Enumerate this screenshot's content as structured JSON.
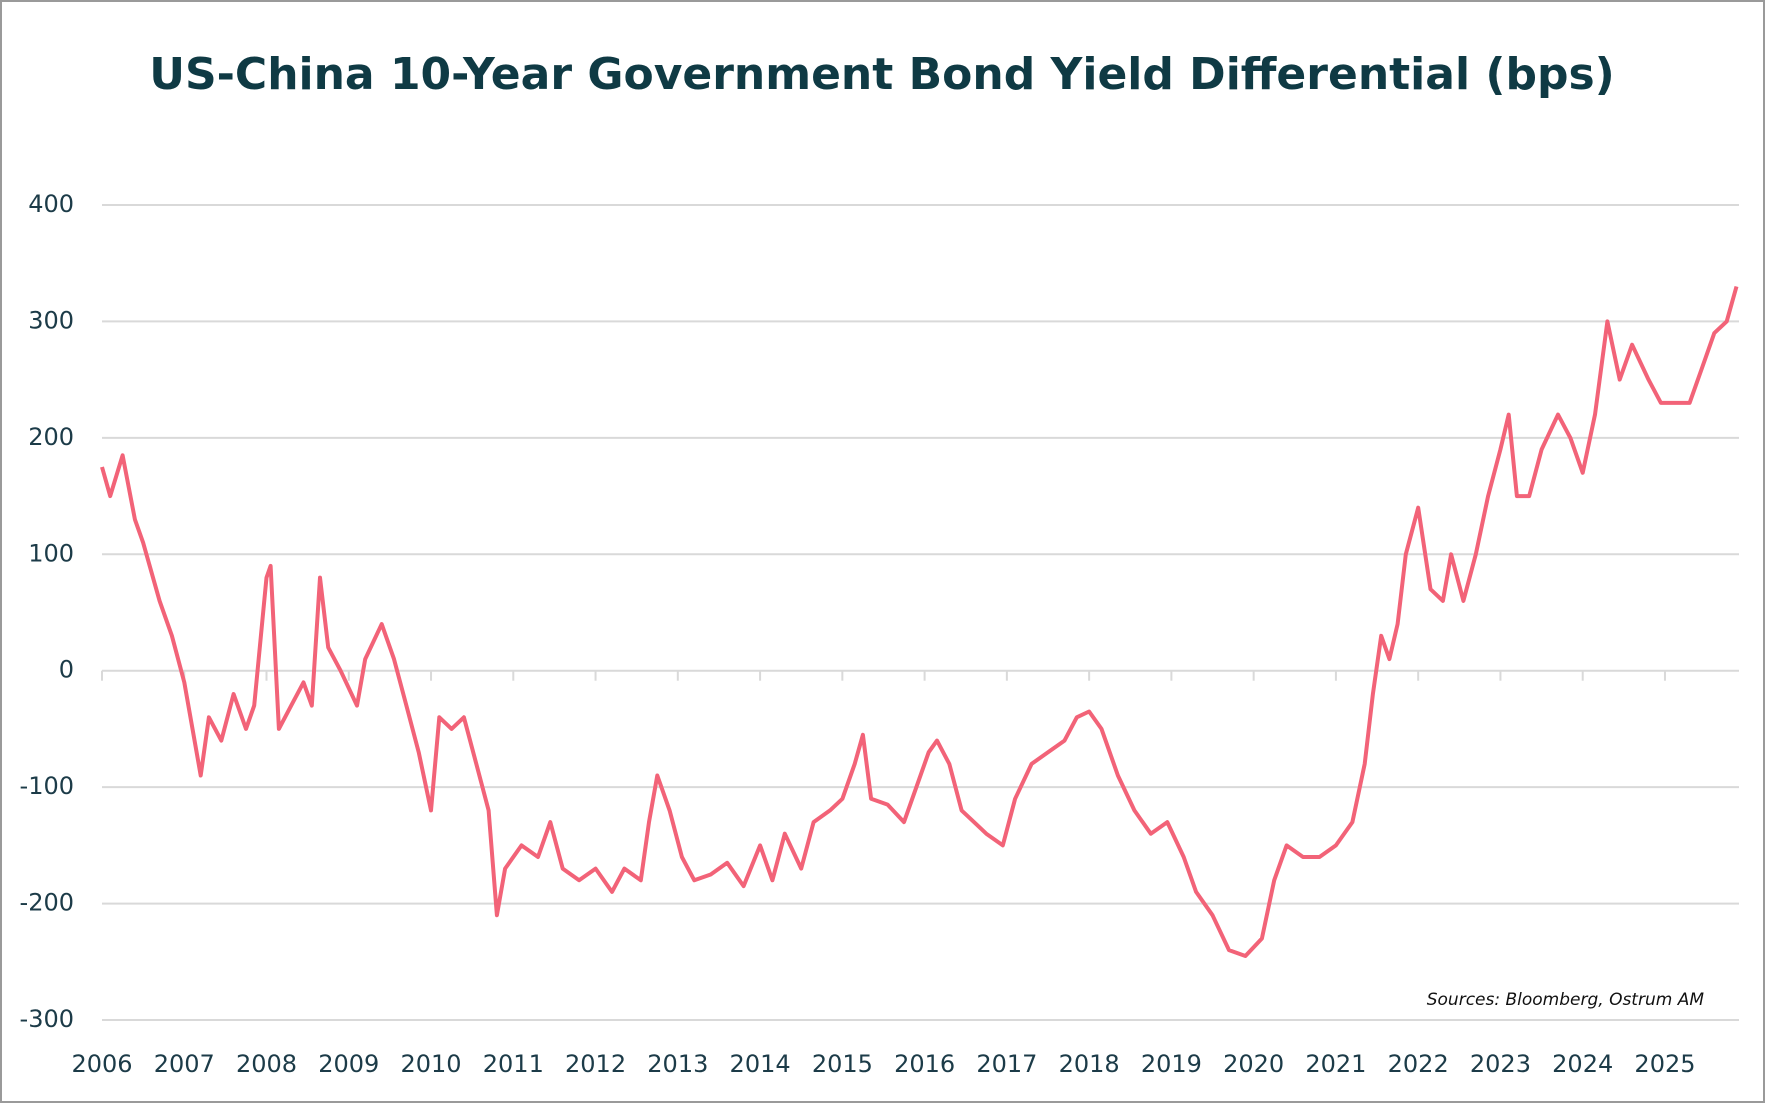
{
  "chart_data": {
    "type": "line",
    "title": "US-China 10-Year Government Bond Yield Differential (bps)",
    "annotation": "Sources: Bloomberg, Ostrum AM",
    "x": [
      2006.0,
      2006.1,
      2006.25,
      2006.4,
      2006.5,
      2006.7,
      2006.85,
      2007.0,
      2007.1,
      2007.2,
      2007.3,
      2007.45,
      2007.6,
      2007.75,
      2007.85,
      2008.0,
      2008.05,
      2008.15,
      2008.3,
      2008.45,
      2008.55,
      2008.65,
      2008.75,
      2008.9,
      2009.1,
      2009.2,
      2009.4,
      2009.55,
      2009.7,
      2009.85,
      2010.0,
      2010.1,
      2010.25,
      2010.4,
      2010.55,
      2010.7,
      2010.8,
      2010.9,
      2011.1,
      2011.3,
      2011.45,
      2011.6,
      2011.8,
      2012.0,
      2012.2,
      2012.35,
      2012.55,
      2012.65,
      2012.75,
      2012.9,
      2013.05,
      2013.2,
      2013.4,
      2013.6,
      2013.8,
      2014.0,
      2014.15,
      2014.3,
      2014.5,
      2014.65,
      2014.85,
      2015.0,
      2015.15,
      2015.25,
      2015.35,
      2015.55,
      2015.75,
      2015.9,
      2016.05,
      2016.15,
      2016.3,
      2016.45,
      2016.6,
      2016.75,
      2016.95,
      2017.1,
      2017.3,
      2017.5,
      2017.7,
      2017.85,
      2018.0,
      2018.15,
      2018.35,
      2018.55,
      2018.75,
      2018.95,
      2019.15,
      2019.3,
      2019.5,
      2019.7,
      2019.9,
      2020.1,
      2020.25,
      2020.4,
      2020.6,
      2020.8,
      2021.0,
      2021.2,
      2021.35,
      2021.45,
      2021.55,
      2021.65,
      2021.75,
      2021.85,
      2022.0,
      2022.15,
      2022.3,
      2022.4,
      2022.55,
      2022.7,
      2022.85,
      2023.0,
      2023.1,
      2023.2,
      2023.35,
      2023.5,
      2023.7,
      2023.85,
      2024.0,
      2024.15,
      2024.3,
      2024.45,
      2024.6,
      2024.8,
      2024.95,
      2025.1,
      2025.3,
      2025.45,
      2025.6,
      2025.75,
      2025.87
    ],
    "series": [
      {
        "name": "US-China 10Y differential",
        "color": "#f26378",
        "values": [
          175,
          150,
          185,
          130,
          110,
          60,
          30,
          -10,
          -50,
          -90,
          -40,
          -60,
          -20,
          -50,
          -30,
          80,
          90,
          -50,
          -30,
          -10,
          -30,
          80,
          20,
          0,
          -30,
          10,
          40,
          10,
          -30,
          -70,
          -120,
          -40,
          -50,
          -40,
          -80,
          -120,
          -210,
          -170,
          -150,
          -160,
          -130,
          -170,
          -180,
          -170,
          -190,
          -170,
          -180,
          -130,
          -90,
          -120,
          -160,
          -180,
          -175,
          -165,
          -185,
          -150,
          -180,
          -140,
          -170,
          -130,
          -120,
          -110,
          -80,
          -55,
          -110,
          -115,
          -130,
          -100,
          -70,
          -60,
          -80,
          -120,
          -130,
          -140,
          -150,
          -110,
          -80,
          -70,
          -60,
          -40,
          -35,
          -50,
          -90,
          -120,
          -140,
          -130,
          -160,
          -190,
          -210,
          -240,
          -245,
          -230,
          -180,
          -150,
          -160,
          -160,
          -150,
          -130,
          -80,
          -20,
          30,
          10,
          40,
          100,
          140,
          70,
          60,
          100,
          60,
          100,
          150,
          190,
          220,
          150,
          150,
          190,
          220,
          200,
          170,
          220,
          300,
          250,
          280,
          250,
          230,
          230,
          230,
          260,
          290,
          300,
          330
        ]
      }
    ],
    "xlim": [
      2006,
      2025.9
    ],
    "xticks": [
      2006,
      2007,
      2008,
      2009,
      2010,
      2011,
      2012,
      2013,
      2014,
      2015,
      2016,
      2017,
      2018,
      2019,
      2020,
      2021,
      2022,
      2023,
      2024,
      2025
    ],
    "ylim": [
      -300,
      400
    ],
    "yticks": [
      -300,
      -200,
      -100,
      0,
      100,
      200,
      300,
      400
    ],
    "grid": true
  }
}
